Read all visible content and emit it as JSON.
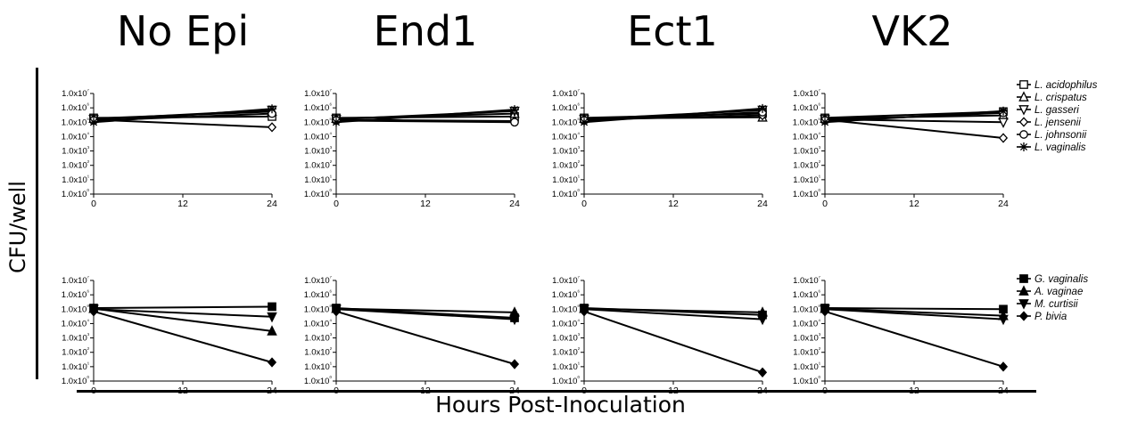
{
  "figure": {
    "column_titles": [
      "No Epi",
      "End1",
      "Ect1",
      "VK2"
    ],
    "ylabel": "CFU/well",
    "xlabel": "Hours Post-Inoculation"
  },
  "chart_data": [
    {
      "type": "line",
      "panel": "No Epi - Lactobacillus",
      "row": 0,
      "col": 0,
      "x": [
        0,
        24
      ],
      "xticks": [
        0,
        12,
        24
      ],
      "xlim": [
        0,
        24
      ],
      "yscale": "log",
      "ylim": [
        1,
        10000000
      ],
      "ytick_labels": [
        "1.0x10⁰",
        "1.0x10¹",
        "1.0x10²",
        "1.0x10³",
        "1.0x10⁴",
        "1.0x10⁵",
        "1.0x10⁶",
        "1.0x10⁷"
      ],
      "series": [
        {
          "name": "L. acidophilus",
          "marker": "square-open",
          "values": [
            200000,
            250000
          ]
        },
        {
          "name": "L. crispatus",
          "marker": "triangle-up-open",
          "values": [
            180000,
            550000
          ]
        },
        {
          "name": "L. gasseri",
          "marker": "triangle-down-open",
          "values": [
            160000,
            700000
          ]
        },
        {
          "name": "L. jensenii",
          "marker": "diamond-open",
          "values": [
            150000,
            45000
          ]
        },
        {
          "name": "L. johnsonii",
          "marker": "circle-open",
          "values": [
            130000,
            400000
          ]
        },
        {
          "name": "L. vaginalis",
          "marker": "star",
          "values": [
            100000,
            850000
          ]
        }
      ]
    },
    {
      "type": "line",
      "panel": "End1 - Lactobacillus",
      "row": 0,
      "col": 1,
      "x": [
        0,
        24
      ],
      "xticks": [
        0,
        12,
        24
      ],
      "xlim": [
        0,
        24
      ],
      "yscale": "log",
      "ylim": [
        1,
        10000000
      ],
      "ytick_labels": [
        "1.0x10⁰",
        "1.0x10¹",
        "1.0x10²",
        "1.0x10³",
        "1.0x10⁴",
        "1.0x10⁵",
        "1.0x10⁶",
        "1.0x10⁷"
      ],
      "series": [
        {
          "name": "L. acidophilus",
          "marker": "square-open",
          "values": [
            200000,
            250000
          ]
        },
        {
          "name": "L. crispatus",
          "marker": "triangle-up-open",
          "values": [
            180000,
            400000
          ]
        },
        {
          "name": "L. gasseri",
          "marker": "triangle-down-open",
          "values": [
            160000,
            600000
          ]
        },
        {
          "name": "L. jensenii",
          "marker": "diamond-open",
          "values": [
            150000,
            120000
          ]
        },
        {
          "name": "L. johnsonii",
          "marker": "circle-open",
          "values": [
            130000,
            100000
          ]
        },
        {
          "name": "L. vaginalis",
          "marker": "star",
          "values": [
            100000,
            750000
          ]
        }
      ]
    },
    {
      "type": "line",
      "panel": "Ect1 - Lactobacillus",
      "row": 0,
      "col": 2,
      "x": [
        0,
        24
      ],
      "xticks": [
        0,
        12,
        24
      ],
      "xlim": [
        0,
        24
      ],
      "yscale": "log",
      "ylim": [
        1,
        10000000
      ],
      "ytick_labels": [
        "1.0x10⁰",
        "1.0x10¹",
        "1.0x10²",
        "1.0x10³",
        "1.0x10⁴",
        "1.0x10⁵",
        "1.0x10⁶",
        "1.0x10⁷"
      ],
      "series": [
        {
          "name": "L. acidophilus",
          "marker": "square-open",
          "values": [
            200000,
            400000
          ]
        },
        {
          "name": "L. crispatus",
          "marker": "triangle-up-open",
          "values": [
            180000,
            220000
          ]
        },
        {
          "name": "L. gasseri",
          "marker": "triangle-down-open",
          "values": [
            160000,
            700000
          ]
        },
        {
          "name": "L. jensenii",
          "marker": "diamond-open",
          "values": [
            150000,
            300000
          ]
        },
        {
          "name": "L. johnsonii",
          "marker": "circle-open",
          "values": [
            130000,
            500000
          ]
        },
        {
          "name": "L. vaginalis",
          "marker": "star",
          "values": [
            100000,
            900000
          ]
        }
      ]
    },
    {
      "type": "line",
      "panel": "VK2 - Lactobacillus",
      "row": 0,
      "col": 3,
      "x": [
        0,
        24
      ],
      "xticks": [
        0,
        12,
        24
      ],
      "xlim": [
        0,
        24
      ],
      "yscale": "log",
      "ylim": [
        1,
        10000000
      ],
      "ytick_labels": [
        "1.0x10⁰",
        "1.0x10¹",
        "1.0x10²",
        "1.0x10³",
        "1.0x10⁴",
        "1.0x10⁵",
        "1.0x10⁶",
        "1.0x10⁷"
      ],
      "series": [
        {
          "name": "L. acidophilus",
          "marker": "square-open",
          "values": [
            200000,
            550000
          ]
        },
        {
          "name": "L. crispatus",
          "marker": "triangle-up-open",
          "values": [
            180000,
            300000
          ]
        },
        {
          "name": "L. gasseri",
          "marker": "triangle-down-open",
          "values": [
            160000,
            100000
          ]
        },
        {
          "name": "L. jensenii",
          "marker": "diamond-open",
          "values": [
            150000,
            8000
          ]
        },
        {
          "name": "L. johnsonii",
          "marker": "circle-open",
          "values": [
            130000,
            450000
          ]
        },
        {
          "name": "L. vaginalis",
          "marker": "star",
          "values": [
            100000,
            600000
          ]
        }
      ]
    },
    {
      "type": "line",
      "panel": "No Epi - BV",
      "row": 1,
      "col": 0,
      "x": [
        0,
        24
      ],
      "xticks": [
        0,
        12,
        24
      ],
      "xlim": [
        0,
        24
      ],
      "yscale": "log",
      "ylim": [
        1,
        10000000
      ],
      "ytick_labels": [
        "1.0x10⁰",
        "1.0x10¹",
        "1.0x10²",
        "1.0x10³",
        "1.0x10⁴",
        "1.0x10⁵",
        "1.0x10⁶",
        "1.0x10⁷"
      ],
      "series": [
        {
          "name": "G. vaginalis",
          "marker": "square-filled",
          "values": [
            120000,
            150000
          ]
        },
        {
          "name": "A. vaginae",
          "marker": "triangle-up-filled",
          "values": [
            110000,
            3000
          ]
        },
        {
          "name": "M. curtisii",
          "marker": "triangle-down-filled",
          "values": [
            100000,
            30000
          ]
        },
        {
          "name": "P. bivia",
          "marker": "diamond-filled",
          "values": [
            70000,
            20
          ]
        }
      ]
    },
    {
      "type": "line",
      "panel": "End1 - BV",
      "row": 1,
      "col": 1,
      "x": [
        0,
        24
      ],
      "xticks": [
        0,
        12,
        24
      ],
      "xlim": [
        0,
        24
      ],
      "yscale": "log",
      "ylim": [
        1,
        10000000
      ],
      "ytick_labels": [
        "1.0x10⁰",
        "1.0x10¹",
        "1.0x10²",
        "1.0x10³",
        "1.0x10⁴",
        "1.0x10⁵",
        "1.0x10⁶",
        "1.0x10⁷"
      ],
      "series": [
        {
          "name": "G. vaginalis",
          "marker": "square-filled",
          "values": [
            120000,
            25000
          ]
        },
        {
          "name": "A. vaginae",
          "marker": "triangle-up-filled",
          "values": [
            110000,
            60000
          ]
        },
        {
          "name": "M. curtisii",
          "marker": "triangle-down-filled",
          "values": [
            100000,
            20000
          ]
        },
        {
          "name": "P. bivia",
          "marker": "diamond-filled",
          "values": [
            70000,
            15
          ]
        }
      ]
    },
    {
      "type": "line",
      "panel": "Ect1 - BV",
      "row": 1,
      "col": 2,
      "x": [
        0,
        24
      ],
      "xticks": [
        0,
        12,
        24
      ],
      "xlim": [
        0,
        24
      ],
      "yscale": "log",
      "ylim": [
        1,
        10000000
      ],
      "ytick_labels": [
        "1.0x10⁰",
        "1.0x10¹",
        "1.0x10²",
        "1.0x10³",
        "1.0x10⁴",
        "1.0x10⁵",
        "1.0x10⁶",
        "1.0x10⁷"
      ],
      "series": [
        {
          "name": "G. vaginalis",
          "marker": "square-filled",
          "values": [
            120000,
            40000
          ]
        },
        {
          "name": "A. vaginae",
          "marker": "triangle-up-filled",
          "values": [
            110000,
            60000
          ]
        },
        {
          "name": "M. curtisii",
          "marker": "triangle-down-filled",
          "values": [
            100000,
            20000
          ]
        },
        {
          "name": "P. bivia",
          "marker": "diamond-filled",
          "values": [
            70000,
            4
          ]
        }
      ]
    },
    {
      "type": "line",
      "panel": "VK2 - BV",
      "row": 1,
      "col": 3,
      "x": [
        0,
        24
      ],
      "xticks": [
        0,
        12,
        24
      ],
      "xlim": [
        0,
        24
      ],
      "yscale": "log",
      "ylim": [
        1,
        10000000
      ],
      "ytick_labels": [
        "1.0x10⁰",
        "1.0x10¹",
        "1.0x10²",
        "1.0x10³",
        "1.0x10⁴",
        "1.0x10⁵",
        "1.0x10⁶",
        "1.0x10⁷"
      ],
      "series": [
        {
          "name": "G. vaginalis",
          "marker": "square-filled",
          "values": [
            120000,
            100000
          ]
        },
        {
          "name": "A. vaginae",
          "marker": "triangle-up-filled",
          "values": [
            110000,
            35000
          ]
        },
        {
          "name": "M. curtisii",
          "marker": "triangle-down-filled",
          "values": [
            100000,
            20000
          ]
        },
        {
          "name": "P. bivia",
          "marker": "diamond-filled",
          "values": [
            70000,
            10
          ]
        }
      ]
    }
  ],
  "legends": {
    "top": [
      {
        "name": "L. acidophilus",
        "marker": "square-open"
      },
      {
        "name": "L. crispatus",
        "marker": "triangle-up-open"
      },
      {
        "name": "L. gasseri",
        "marker": "triangle-down-open"
      },
      {
        "name": "L. jensenii",
        "marker": "diamond-open"
      },
      {
        "name": "L. johnsonii",
        "marker": "circle-open"
      },
      {
        "name": "L. vaginalis",
        "marker": "star"
      }
    ],
    "bottom": [
      {
        "name": "G. vaginalis",
        "marker": "square-filled"
      },
      {
        "name": "A. vaginae",
        "marker": "triangle-up-filled"
      },
      {
        "name": "M. curtisii",
        "marker": "triangle-down-filled"
      },
      {
        "name": "P. bivia",
        "marker": "diamond-filled"
      }
    ]
  }
}
